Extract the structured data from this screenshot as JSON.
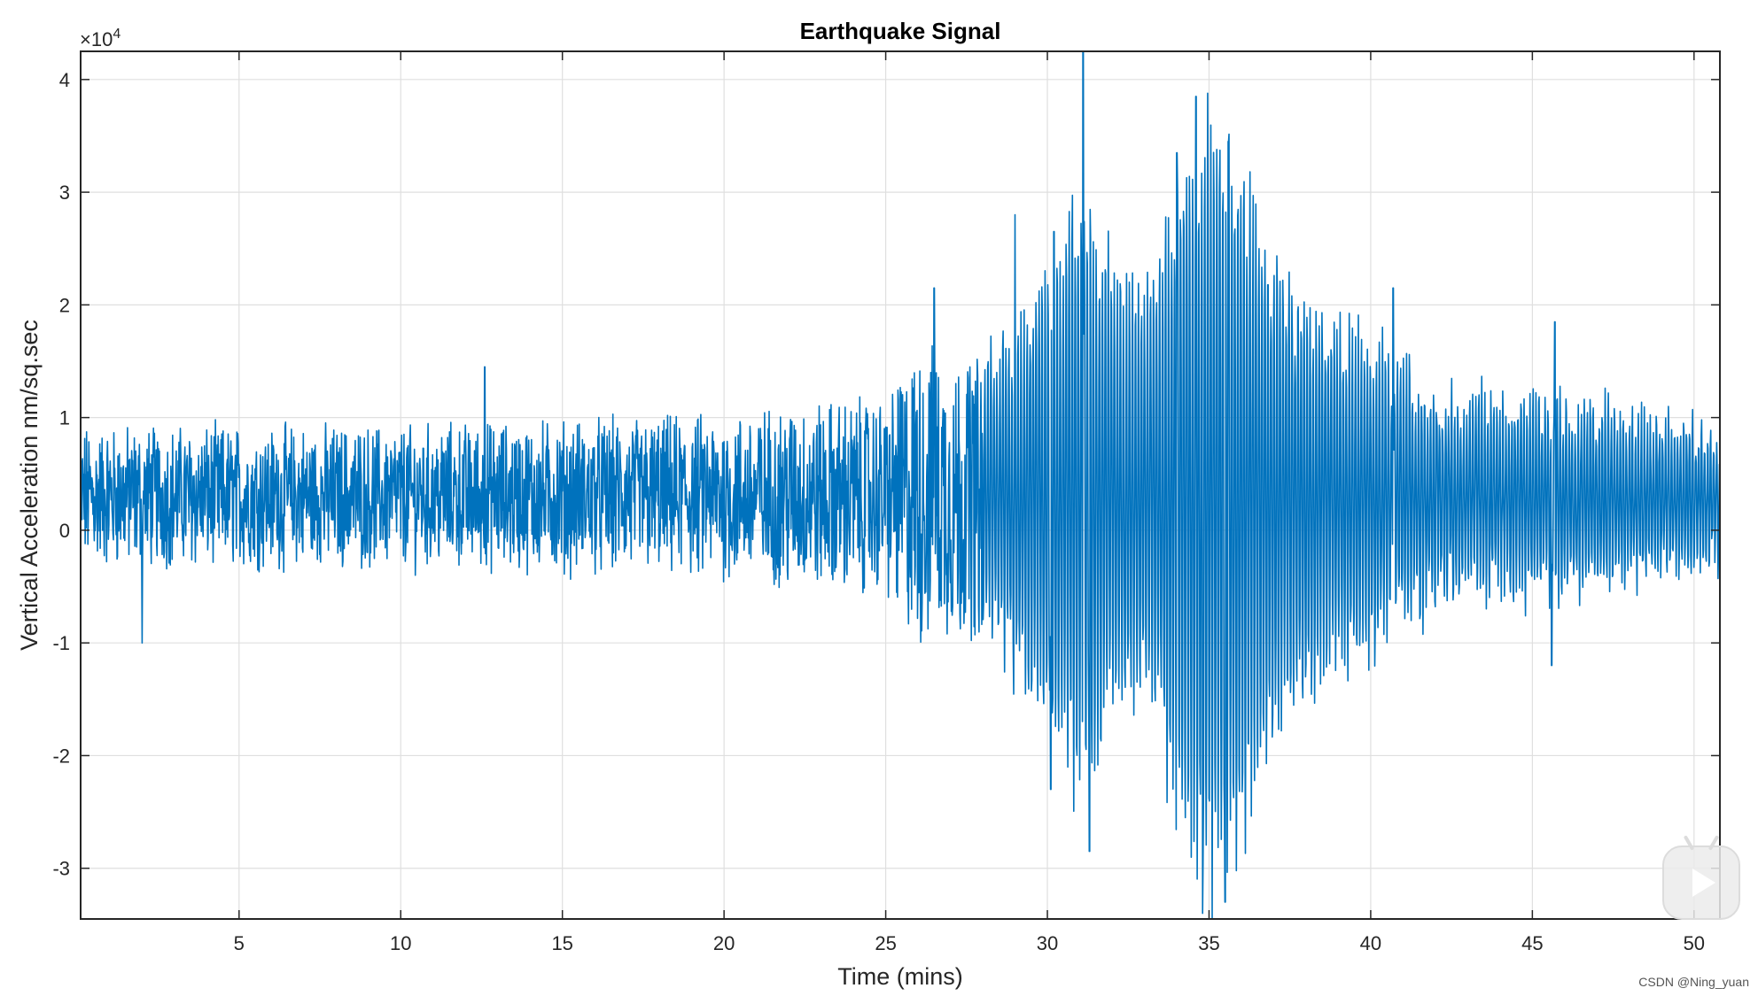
{
  "chart_data": {
    "type": "line",
    "title": "Earthquake Signal",
    "xlabel": "Time (mins)",
    "ylabel": "Vertical Acceleration nm/sq.sec",
    "y_exponent_label": "×10",
    "y_exponent_power": "4",
    "xlim": [
      0.1,
      50.8
    ],
    "ylim": [
      -3.45,
      4.25
    ],
    "x_ticks": [
      5,
      10,
      15,
      20,
      25,
      30,
      35,
      40,
      45,
      50
    ],
    "x_tick_labels": [
      "5",
      "10",
      "15",
      "20",
      "25",
      "30",
      "35",
      "40",
      "45",
      "50"
    ],
    "y_ticks": [
      -3,
      -2,
      -1,
      0,
      1,
      2,
      3,
      4
    ],
    "y_tick_labels": [
      "-3",
      "-2",
      "-1",
      "0",
      "1",
      "2",
      "3",
      "4"
    ],
    "grid": true,
    "line_color": "#0072BD",
    "series": [
      {
        "name": "Earthquake Signal",
        "envelope_x": [
          0,
          5,
          10,
          15,
          20,
          22,
          25,
          26,
          28,
          29,
          30,
          31,
          32,
          33,
          34,
          35,
          36,
          37,
          38,
          39,
          40,
          41,
          42,
          43,
          44,
          45,
          46,
          48,
          50.8
        ],
        "envelope_amplitude": [
          0.5,
          0.5,
          0.5,
          0.55,
          0.6,
          0.7,
          0.75,
          1.2,
          1.1,
          1.6,
          2.0,
          2.8,
          2.0,
          1.8,
          2.8,
          3.5,
          3.1,
          2.2,
          1.7,
          1.6,
          1.4,
          1.1,
          0.9,
          0.85,
          0.85,
          0.9,
          0.85,
          0.7,
          0.6
        ],
        "peaks": [
          {
            "x": 2.0,
            "y": -1.0
          },
          {
            "x": 12.6,
            "y": 1.45
          },
          {
            "x": 26.5,
            "y": 2.15
          },
          {
            "x": 29.0,
            "y": 2.8
          },
          {
            "x": 30.1,
            "y": -2.3
          },
          {
            "x": 30.2,
            "y": 2.65
          },
          {
            "x": 31.1,
            "y": 4.25
          },
          {
            "x": 31.3,
            "y": -2.85
          },
          {
            "x": 34.0,
            "y": 3.35
          },
          {
            "x": 34.6,
            "y": 3.85
          },
          {
            "x": 34.8,
            "y": -3.4
          },
          {
            "x": 35.6,
            "y": 3.45
          },
          {
            "x": 35.5,
            "y": -3.3
          },
          {
            "x": 40.7,
            "y": 2.15
          },
          {
            "x": 45.7,
            "y": 1.85
          },
          {
            "x": 45.6,
            "y": -1.2
          }
        ],
        "baseline": 0.3
      }
    ]
  },
  "watermark": "CSDN @Ning_yuan",
  "icons": {
    "play_badge": "video-play-icon"
  }
}
